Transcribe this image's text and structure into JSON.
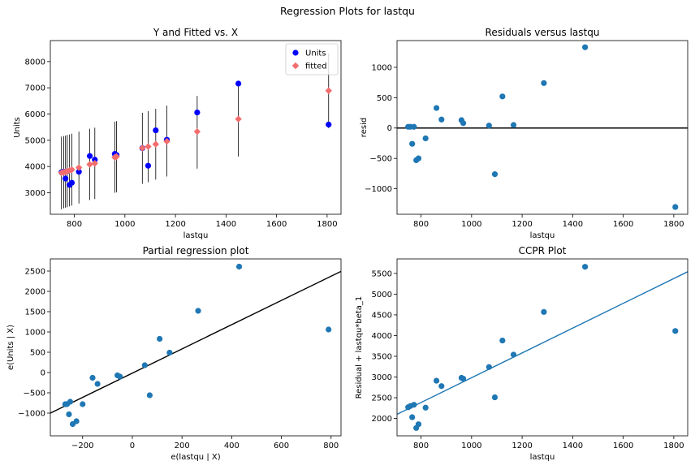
{
  "figure": {
    "title": "Regression Plots for lastqu"
  },
  "chart_data": [
    {
      "type": "scatter",
      "title": "Y and Fitted vs. X",
      "xlabel": "lastqu",
      "ylabel": "Units",
      "xlim": [
        705,
        1855
      ],
      "ylim": [
        2180,
        8800
      ],
      "xticks": [
        800,
        1000,
        1200,
        1400,
        1600,
        1800
      ],
      "yticks": [
        3000,
        4000,
        5000,
        6000,
        7000,
        8000
      ],
      "legend": {
        "placement": "top-right",
        "entries": [
          "Units",
          "fitted"
        ]
      },
      "colors": {
        "units": "#0000ff",
        "fitted": "#f26d6d"
      },
      "series": [
        {
          "name": "Units",
          "x": [
            749,
            758,
            765,
            772,
            781,
            790,
            818,
            861,
            881,
            960,
            967,
            1069,
            1092,
            1122,
            1166,
            1286,
            1449,
            1806
          ],
          "y": [
            3780,
            3800,
            3540,
            3820,
            3300,
            3380,
            3800,
            4400,
            4260,
            4480,
            4440,
            4700,
            4030,
            5380,
            5020,
            6060,
            7160,
            5600
          ]
        },
        {
          "name": "fitted",
          "x": [
            749,
            758,
            765,
            772,
            781,
            790,
            818,
            861,
            881,
            960,
            967,
            1069,
            1092,
            1122,
            1166,
            1286,
            1449,
            1806
          ],
          "y": [
            3760,
            3780,
            3800,
            3820,
            3850,
            3880,
            3960,
            4080,
            4120,
            4350,
            4380,
            4700,
            4760,
            4850,
            4960,
            5330,
            5810,
            6890
          ],
          "lower": [
            2370,
            2410,
            2430,
            2450,
            2480,
            2510,
            2590,
            2720,
            2760,
            3000,
            3020,
            3340,
            3400,
            3500,
            3620,
            3920,
            4380,
            5460
          ],
          "upper": [
            5140,
            5160,
            5180,
            5200,
            5220,
            5250,
            5330,
            5440,
            5480,
            5710,
            5730,
            6050,
            6110,
            6200,
            6320,
            6690,
            7200,
            8310
          ]
        }
      ]
    },
    {
      "type": "scatter",
      "title": "Residuals versus lastqu",
      "xlabel": "lastqu",
      "ylabel": "resid",
      "xlim": [
        705,
        1855
      ],
      "ylim": [
        -1420,
        1440
      ],
      "xticks": [
        800,
        1000,
        1200,
        1400,
        1600,
        1800
      ],
      "yticks": [
        -1000,
        -500,
        0,
        500,
        1000
      ],
      "hline": 0,
      "series": [
        {
          "x": [
            749,
            758,
            765,
            772,
            781,
            790,
            818,
            861,
            881,
            960,
            967,
            1069,
            1092,
            1122,
            1166,
            1286,
            1449,
            1806
          ],
          "y": [
            20,
            20,
            -260,
            20,
            -530,
            -500,
            -170,
            330,
            140,
            130,
            80,
            40,
            -760,
            520,
            50,
            740,
            1330,
            -1300
          ]
        }
      ]
    },
    {
      "type": "scatter",
      "title": "Partial regression plot",
      "xlabel": "e(lastqu | X)",
      "ylabel": "e(Units | X)",
      "xlim": [
        -330,
        840
      ],
      "ylim": [
        -1560,
        2800
      ],
      "xticks": [
        -200,
        0,
        200,
        400,
        600,
        800
      ],
      "yticks": [
        -1000,
        -500,
        0,
        500,
        1000,
        1500,
        2000,
        2500
      ],
      "fit_line": {
        "slope": 3.0,
        "intercept": 0
      },
      "series": [
        {
          "x": [
            -270,
            -263,
            -255,
            -250,
            -240,
            -225,
            -200,
            -160,
            -140,
            -60,
            -50,
            50,
            70,
            110,
            150,
            265,
            430,
            790
          ],
          "y": [
            -780,
            -780,
            -1030,
            -720,
            -1270,
            -1200,
            -780,
            -130,
            -280,
            -70,
            -100,
            180,
            -560,
            830,
            490,
            1520,
            2610,
            1060
          ]
        }
      ]
    },
    {
      "type": "scatter",
      "title": "CCPR Plot",
      "xlabel": "lastqu",
      "ylabel": "Residual + lastqu*beta_1",
      "xlim": [
        705,
        1855
      ],
      "ylim": [
        1580,
        5850
      ],
      "xticks": [
        800,
        1000,
        1200,
        1400,
        1600,
        1800
      ],
      "yticks": [
        2000,
        2500,
        3000,
        3500,
        4000,
        4500,
        5000,
        5500
      ],
      "fit_line": {
        "slope": 3.0,
        "intercept": 0
      },
      "colors": {
        "line": "#1f77b4"
      },
      "series": [
        {
          "x": [
            749,
            758,
            765,
            772,
            781,
            790,
            818,
            861,
            881,
            960,
            967,
            1069,
            1092,
            1122,
            1166,
            1286,
            1449,
            1806
          ],
          "y": [
            2270,
            2300,
            2030,
            2330,
            1770,
            1860,
            2260,
            2910,
            2780,
            2980,
            2960,
            3240,
            2510,
            3880,
            3540,
            4570,
            5660,
            4110
          ]
        }
      ]
    }
  ]
}
